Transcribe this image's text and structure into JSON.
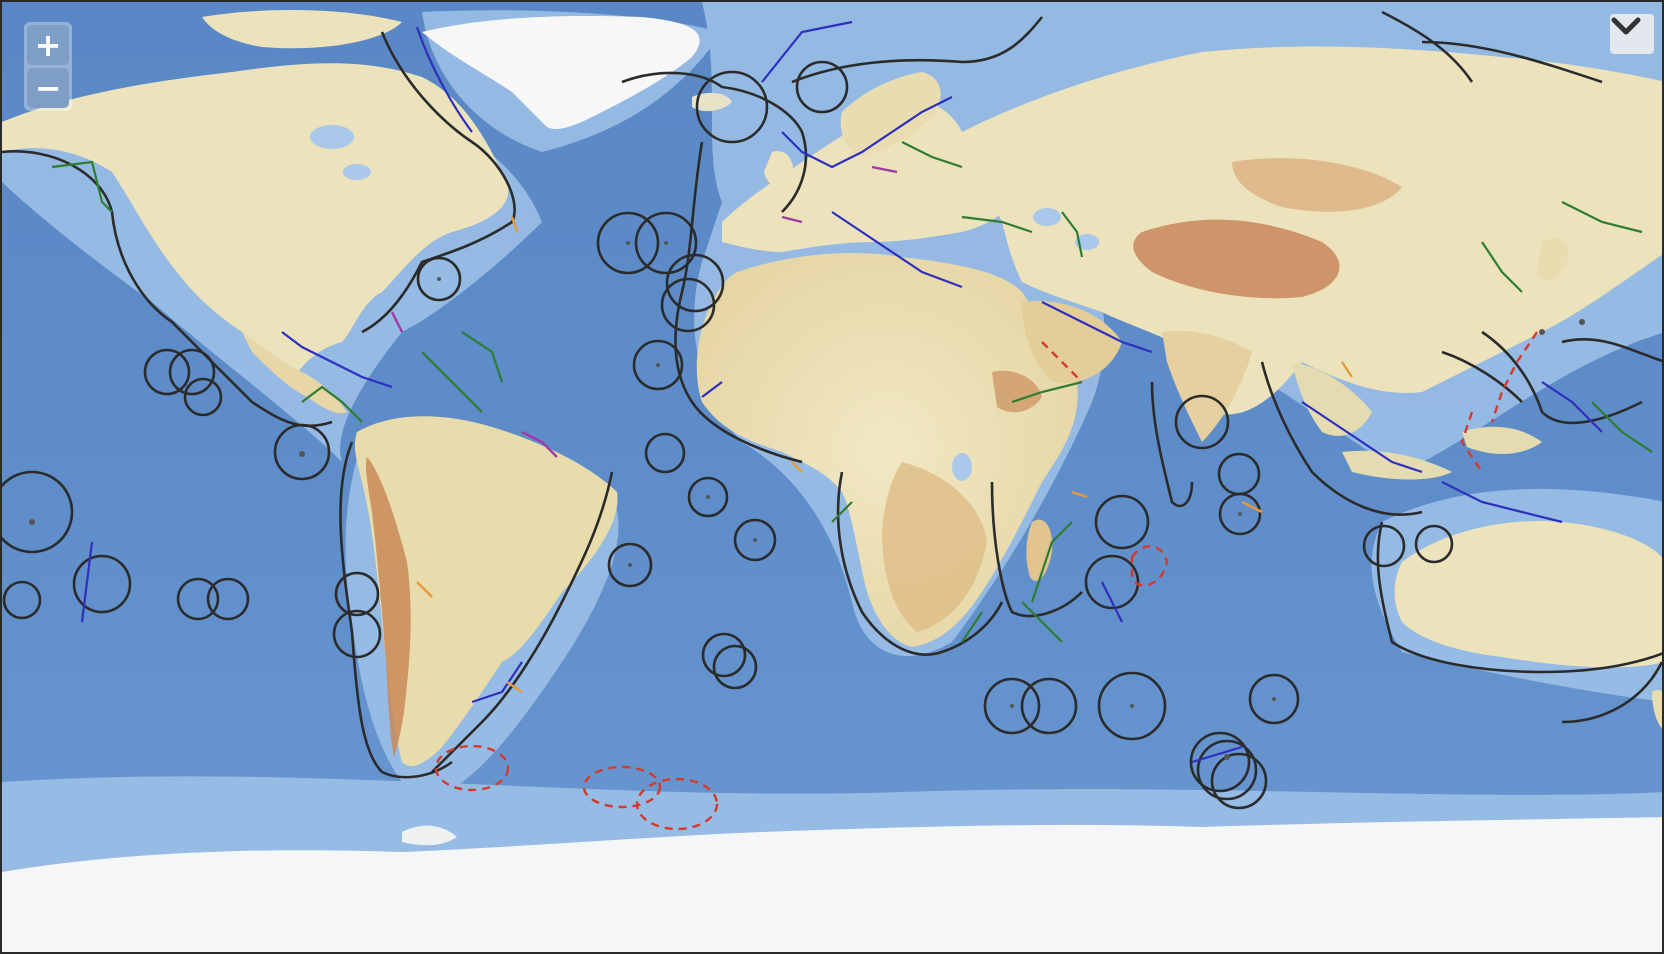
{
  "map": {
    "zoom_in_label": "+",
    "zoom_out_label": "−",
    "layer_toggle_icon": "chevron-down-icon",
    "colors": {
      "deep_ocean": "#4d7fbf",
      "ocean": "#6592cc",
      "shelf": "#a9c8ea",
      "land_low": "#efe6bf",
      "land_mid": "#e0c48f",
      "land_high": "#c9905f",
      "ice": "#f4f4f4",
      "eez_boundary": "#2b2b2b",
      "treaty_boundary": "#2f2fbf",
      "median_line": "#2e7d32",
      "disputed_boundary": "#d33a2c",
      "joint_regime": "#a23aa6",
      "other_boundary": "#e69a3a"
    }
  }
}
